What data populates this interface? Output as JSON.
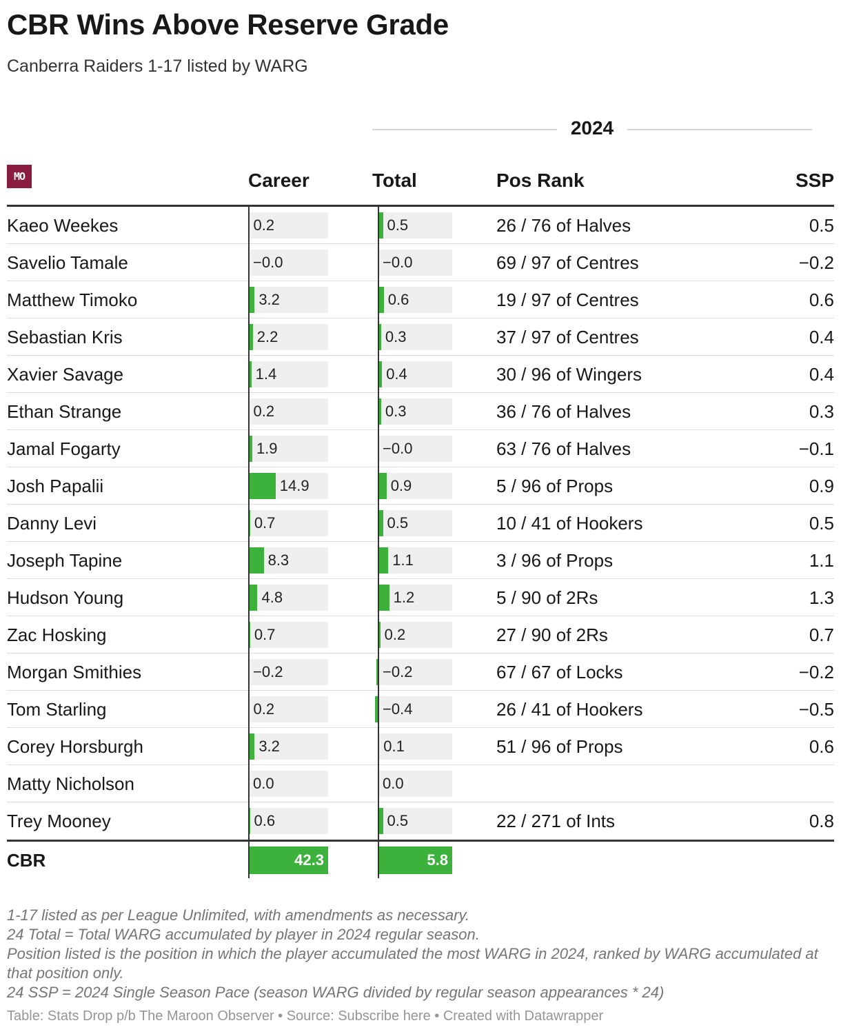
{
  "title": "CBR Wins Above Reserve Grade",
  "subtitle": "Canberra Raiders 1-17 listed by WARG",
  "logo_text": "MO",
  "group_label": "2024",
  "columns": {
    "career": "Career",
    "total": "Total",
    "pos_rank": "Pos Rank",
    "ssp": "SSP"
  },
  "chart_data": {
    "type": "table",
    "title": "CBR Wins Above Reserve Grade",
    "subtitle": "Canberra Raiders 1-17 listed by WARG",
    "bar_colors": {
      "fill": "#3cb23c",
      "track": "#efefef"
    },
    "rows": [
      {
        "name": "Kaeo Weekes",
        "career": 0.2,
        "career_label": "0.2",
        "total": 0.5,
        "total_label": "0.5",
        "pos_rank": "26 / 76 of Halves",
        "ssp": "0.5"
      },
      {
        "name": "Savelio Tamale",
        "career": 0.0,
        "career_label": "−0.0",
        "total": 0.0,
        "total_label": "−0.0",
        "pos_rank": "69 / 97 of Centres",
        "ssp": "−0.2"
      },
      {
        "name": "Matthew Timoko",
        "career": 3.2,
        "career_label": "3.2",
        "total": 0.6,
        "total_label": "0.6",
        "pos_rank": "19 / 97 of Centres",
        "ssp": "0.6"
      },
      {
        "name": "Sebastian Kris",
        "career": 2.2,
        "career_label": "2.2",
        "total": 0.3,
        "total_label": "0.3",
        "pos_rank": "37 / 97 of Centres",
        "ssp": "0.4"
      },
      {
        "name": "Xavier Savage",
        "career": 1.4,
        "career_label": "1.4",
        "total": 0.4,
        "total_label": "0.4",
        "pos_rank": "30 / 96 of Wingers",
        "ssp": "0.4"
      },
      {
        "name": "Ethan Strange",
        "career": 0.2,
        "career_label": "0.2",
        "total": 0.3,
        "total_label": "0.3",
        "pos_rank": "36 / 76 of Halves",
        "ssp": "0.3"
      },
      {
        "name": "Jamal Fogarty",
        "career": 1.9,
        "career_label": "1.9",
        "total": 0.0,
        "total_label": "−0.0",
        "pos_rank": "63 / 76 of Halves",
        "ssp": "−0.1"
      },
      {
        "name": "Josh Papalii",
        "career": 14.9,
        "career_label": "14.9",
        "total": 0.9,
        "total_label": "0.9",
        "pos_rank": "5 / 96 of Props",
        "ssp": "0.9"
      },
      {
        "name": "Danny Levi",
        "career": 0.7,
        "career_label": "0.7",
        "total": 0.5,
        "total_label": "0.5",
        "pos_rank": "10 / 41 of Hookers",
        "ssp": "0.5"
      },
      {
        "name": "Joseph Tapine",
        "career": 8.3,
        "career_label": "8.3",
        "total": 1.1,
        "total_label": "1.1",
        "pos_rank": "3 / 96 of Props",
        "ssp": "1.1"
      },
      {
        "name": "Hudson Young",
        "career": 4.8,
        "career_label": "4.8",
        "total": 1.2,
        "total_label": "1.2",
        "pos_rank": "5 / 90 of 2Rs",
        "ssp": "1.3"
      },
      {
        "name": "Zac Hosking",
        "career": 0.7,
        "career_label": "0.7",
        "total": 0.2,
        "total_label": "0.2",
        "pos_rank": "27 / 90 of 2Rs",
        "ssp": "0.7"
      },
      {
        "name": "Morgan Smithies",
        "career": -0.2,
        "career_label": "−0.2",
        "total": -0.2,
        "total_label": "−0.2",
        "pos_rank": "67 / 67 of Locks",
        "ssp": "−0.2"
      },
      {
        "name": "Tom Starling",
        "career": 0.2,
        "career_label": "0.2",
        "total": -0.4,
        "total_label": "−0.4",
        "pos_rank": "26 / 41 of Hookers",
        "ssp": "−0.5"
      },
      {
        "name": "Corey Horsburgh",
        "career": 3.2,
        "career_label": "3.2",
        "total": 0.1,
        "total_label": "0.1",
        "pos_rank": "51 / 96 of Props",
        "ssp": "0.6"
      },
      {
        "name": "Matty Nicholson",
        "career": 0.0,
        "career_label": "0.0",
        "total": 0.0,
        "total_label": "0.0",
        "pos_rank": "",
        "ssp": ""
      },
      {
        "name": "Trey Mooney",
        "career": 0.6,
        "career_label": "0.6",
        "total": 0.5,
        "total_label": "0.5",
        "pos_rank": "22 / 271 of Ints",
        "ssp": "0.8"
      }
    ],
    "totals": {
      "name": "CBR",
      "career": 42.3,
      "career_label": "42.3",
      "total": 5.8,
      "total_label": "5.8"
    }
  },
  "notes": [
    "1-17 listed as per League Unlimited, with amendments as necessary.",
    "24 Total = Total WARG accumulated by player in 2024 regular season.",
    "Position listed is the position in which the player accumulated the most WARG in 2024, ranked by WARG accumulated at that position only.",
    "24 SSP = 2024 Single Season Pace (season WARG divided by regular season appearances * 24)"
  ],
  "credit": "Table: Stats Drop p/b The Maroon Observer • Source: Subscribe here • Created with Datawrapper"
}
